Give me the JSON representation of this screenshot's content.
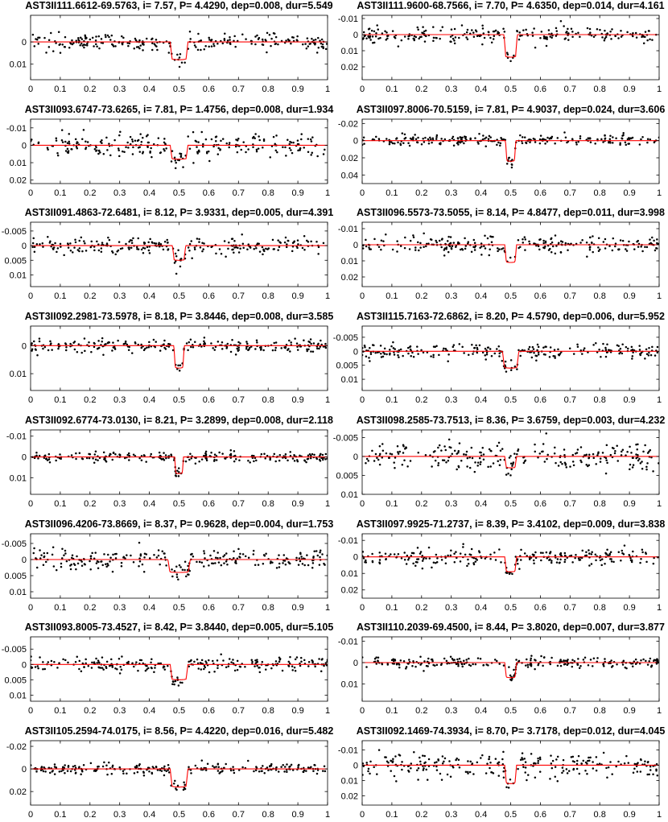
{
  "colors": {
    "data_points": "#000000",
    "model_curve": "#ff0000",
    "axes": "#000000",
    "background": "#ffffff"
  },
  "chart_data": [
    {
      "type": "scatter",
      "title": "AST3II111.6612-69.5763, i= 7.57, P= 4.4290, dep=0.008, dur=5.549",
      "xlim": [
        0,
        1
      ],
      "ylim": [
        -0.012,
        0.017
      ],
      "y_reversed": true,
      "xticks": [
        0,
        0.1,
        0.2,
        0.3,
        0.4,
        0.5,
        0.6,
        0.7,
        0.8,
        0.9,
        1
      ],
      "yticks": [
        0,
        0.01
      ],
      "ytick_labels": [
        "0",
        "0.01"
      ],
      "transit": {
        "center": 0.5,
        "depth": 0.008,
        "width": 0.06
      },
      "scatter_sigma": 0.0018,
      "series": [
        {
          "type": "scatter"
        },
        {
          "type": "line"
        }
      ]
    },
    {
      "type": "scatter",
      "title": "AST3II111.9600-68.7566, i= 7.70, P= 4.6350, dep=0.014, dur=4.161",
      "xlim": [
        0,
        1
      ],
      "ylim": [
        -0.012,
        0.028
      ],
      "y_reversed": true,
      "xticks": [
        0,
        0.1,
        0.2,
        0.3,
        0.4,
        0.5,
        0.6,
        0.7,
        0.8,
        0.9,
        1
      ],
      "yticks": [
        -0.01,
        0,
        0.01,
        0.02
      ],
      "ytick_labels": [
        "-0.01",
        "0",
        "0.01",
        "0.02"
      ],
      "transit": {
        "center": 0.5,
        "depth": 0.014,
        "width": 0.045
      },
      "scatter_sigma": 0.0025,
      "series": [
        {
          "type": "scatter"
        },
        {
          "type": "line"
        }
      ]
    },
    {
      "type": "scatter",
      "title": "AST3II093.6747-73.6265, i= 7.81, P= 1.4756, dep=0.008, dur=1.934",
      "xlim": [
        0,
        1
      ],
      "ylim": [
        -0.015,
        0.022
      ],
      "y_reversed": true,
      "xticks": [
        0,
        0.1,
        0.2,
        0.3,
        0.4,
        0.5,
        0.6,
        0.7,
        0.8,
        0.9,
        1
      ],
      "yticks": [
        -0.01,
        0,
        0.01,
        0.02
      ],
      "ytick_labels": [
        "-0.01",
        "0",
        "0.01",
        "0.02"
      ],
      "transit": {
        "center": 0.5,
        "depth": 0.008,
        "width": 0.06
      },
      "scatter_sigma": 0.0035,
      "series": [
        {
          "type": "scatter"
        },
        {
          "type": "line"
        }
      ]
    },
    {
      "type": "scatter",
      "title": "AST3II097.8006-70.5159, i= 7.81, P= 4.9037, dep=0.024, dur=3.606",
      "xlim": [
        0,
        1
      ],
      "ylim": [
        -0.025,
        0.05
      ],
      "y_reversed": true,
      "xticks": [
        0,
        0.1,
        0.2,
        0.3,
        0.4,
        0.5,
        0.6,
        0.7,
        0.8,
        0.9,
        1
      ],
      "yticks": [
        -0.02,
        0,
        0.02,
        0.04
      ],
      "ytick_labels": [
        "-0.02",
        "0",
        "0.02",
        "0.04"
      ],
      "transit": {
        "center": 0.5,
        "depth": 0.024,
        "width": 0.035
      },
      "scatter_sigma": 0.003,
      "series": [
        {
          "type": "scatter"
        },
        {
          "type": "line"
        }
      ]
    },
    {
      "type": "scatter",
      "title": "AST3II091.4863-72.6481, i= 8.12, P= 3.9331, dep=0.005, dur=4.391",
      "xlim": [
        0,
        1
      ],
      "ylim": [
        -0.008,
        0.014
      ],
      "y_reversed": true,
      "xticks": [
        0,
        0.1,
        0.2,
        0.3,
        0.4,
        0.5,
        0.6,
        0.7,
        0.8,
        0.9,
        1
      ],
      "yticks": [
        -0.005,
        0,
        0.005,
        0.01
      ],
      "ytick_labels": [
        "-0.005",
        "0",
        "0.005",
        "0.01"
      ],
      "transit": {
        "center": 0.5,
        "depth": 0.005,
        "width": 0.045
      },
      "scatter_sigma": 0.0015,
      "series": [
        {
          "type": "scatter"
        },
        {
          "type": "line"
        }
      ]
    },
    {
      "type": "scatter",
      "title": "AST3II096.5573-73.5055, i= 8.14, P= 4.8477, dep=0.011, dur=3.998",
      "xlim": [
        0,
        1
      ],
      "ylim": [
        -0.014,
        0.026
      ],
      "y_reversed": true,
      "xticks": [
        0,
        0.1,
        0.2,
        0.3,
        0.4,
        0.5,
        0.6,
        0.7,
        0.8,
        0.9,
        1
      ],
      "yticks": [
        -0.01,
        0,
        0.01,
        0.02
      ],
      "ytick_labels": [
        "-0.01",
        "0",
        "0.01",
        "0.02"
      ],
      "transit": {
        "center": 0.5,
        "depth": 0.011,
        "width": 0.04
      },
      "scatter_sigma": 0.0025,
      "series": [
        {
          "type": "scatter"
        },
        {
          "type": "line"
        }
      ]
    },
    {
      "type": "scatter",
      "title": "AST3II092.2981-73.5978, i= 8.18, P= 3.8446, dep=0.008, dur=3.585",
      "xlim": [
        0,
        1
      ],
      "ylim": [
        -0.007,
        0.016
      ],
      "y_reversed": true,
      "xticks": [
        0,
        0.1,
        0.2,
        0.3,
        0.4,
        0.5,
        0.6,
        0.7,
        0.8,
        0.9,
        1
      ],
      "yticks": [
        0,
        0.01
      ],
      "ytick_labels": [
        "0",
        "0.01"
      ],
      "transit": {
        "center": 0.5,
        "depth": 0.008,
        "width": 0.035
      },
      "scatter_sigma": 0.0012,
      "series": [
        {
          "type": "scatter"
        },
        {
          "type": "line"
        }
      ]
    },
    {
      "type": "scatter",
      "title": "AST3II115.7163-72.6862, i= 8.20, P= 4.5790, dep=0.006, dur=5.952",
      "xlim": [
        0,
        1
      ],
      "ylim": [
        -0.009,
        0.014
      ],
      "y_reversed": true,
      "xticks": [
        0,
        0.1,
        0.2,
        0.3,
        0.4,
        0.5,
        0.6,
        0.7,
        0.8,
        0.9,
        1
      ],
      "yticks": [
        -0.005,
        0,
        0.005,
        0.01
      ],
      "ytick_labels": [
        "-0.005",
        "0",
        "0.005",
        "0.01"
      ],
      "transit": {
        "center": 0.5,
        "depth": 0.006,
        "width": 0.055
      },
      "scatter_sigma": 0.0013,
      "series": [
        {
          "type": "scatter"
        },
        {
          "type": "line"
        }
      ]
    },
    {
      "type": "scatter",
      "title": "AST3II092.6774-73.0130, i= 8.21, P= 3.2899, dep=0.008, dur=2.118",
      "xlim": [
        0,
        1
      ],
      "ylim": [
        -0.013,
        0.018
      ],
      "y_reversed": true,
      "xticks": [
        0,
        0.1,
        0.2,
        0.3,
        0.4,
        0.5,
        0.6,
        0.7,
        0.8,
        0.9,
        1
      ],
      "yticks": [
        -0.01,
        0,
        0.01
      ],
      "ytick_labels": [
        "-0.01",
        "0",
        "0.01"
      ],
      "transit": {
        "center": 0.5,
        "depth": 0.008,
        "width": 0.03
      },
      "scatter_sigma": 0.0012,
      "series": [
        {
          "type": "scatter"
        },
        {
          "type": "line"
        }
      ]
    },
    {
      "type": "scatter",
      "title": "AST3II098.2585-73.7513, i= 8.36, P= 3.6759, dep=0.003, dur=4.232",
      "xlim": [
        0,
        1
      ],
      "ylim": [
        -0.007,
        0.01
      ],
      "y_reversed": true,
      "xticks": [
        0,
        0.1,
        0.2,
        0.3,
        0.4,
        0.5,
        0.6,
        0.7,
        0.8,
        0.9,
        1
      ],
      "yticks": [
        -0.005,
        0,
        0.005,
        0.01
      ],
      "ytick_labels": [
        "-0.005",
        "0",
        "0.005",
        "0.01"
      ],
      "transit": {
        "center": 0.5,
        "depth": 0.003,
        "width": 0.04
      },
      "scatter_sigma": 0.0018,
      "series": [
        {
          "type": "scatter"
        },
        {
          "type": "line"
        }
      ]
    },
    {
      "type": "scatter",
      "title": "AST3II096.4206-73.8669, i= 8.37, P= 0.9628, dep=0.004, dur=1.753",
      "xlim": [
        0,
        1
      ],
      "ylim": [
        -0.008,
        0.012
      ],
      "y_reversed": true,
      "xticks": [
        0,
        0.1,
        0.2,
        0.3,
        0.4,
        0.5,
        0.6,
        0.7,
        0.8,
        0.9,
        1
      ],
      "yticks": [
        -0.005,
        0,
        0.005,
        0.01
      ],
      "ytick_labels": [
        "-0.005",
        "0",
        "0.005",
        "0.01"
      ],
      "transit": {
        "center": 0.5,
        "depth": 0.004,
        "width": 0.075
      },
      "scatter_sigma": 0.0014,
      "series": [
        {
          "type": "scatter"
        },
        {
          "type": "line"
        }
      ]
    },
    {
      "type": "scatter",
      "title": "AST3II097.9925-71.2737, i= 8.39, P= 3.4102, dep=0.009, dur=3.838",
      "xlim": [
        0,
        1
      ],
      "ylim": [
        -0.014,
        0.025
      ],
      "y_reversed": true,
      "xticks": [
        0,
        0.1,
        0.2,
        0.3,
        0.4,
        0.5,
        0.6,
        0.7,
        0.8,
        0.9,
        1
      ],
      "yticks": [
        -0.01,
        0,
        0.01,
        0.02
      ],
      "ytick_labels": [
        "-0.01",
        "0",
        "0.01",
        "0.02"
      ],
      "transit": {
        "center": 0.5,
        "depth": 0.009,
        "width": 0.04
      },
      "scatter_sigma": 0.0025,
      "series": [
        {
          "type": "scatter"
        },
        {
          "type": "line"
        }
      ]
    },
    {
      "type": "scatter",
      "title": "AST3II093.8005-73.4527, i= 8.42, P= 3.8440, dep=0.005, dur=5.105",
      "xlim": [
        0,
        1
      ],
      "ylim": [
        -0.009,
        0.012
      ],
      "y_reversed": true,
      "xticks": [
        0,
        0.1,
        0.2,
        0.3,
        0.4,
        0.5,
        0.6,
        0.7,
        0.8,
        0.9,
        1
      ],
      "yticks": [
        -0.005,
        0,
        0.005,
        0.01
      ],
      "ytick_labels": [
        "-0.005",
        "0",
        "0.005",
        "0.01"
      ],
      "transit": {
        "center": 0.5,
        "depth": 0.005,
        "width": 0.06
      },
      "scatter_sigma": 0.0012,
      "series": [
        {
          "type": "scatter"
        },
        {
          "type": "line"
        }
      ]
    },
    {
      "type": "scatter",
      "title": "AST3II110.2039-69.4500, i= 8.44, P= 3.8020, dep=0.007, dur=3.877",
      "xlim": [
        0,
        1
      ],
      "ylim": [
        -0.012,
        0.018
      ],
      "y_reversed": true,
      "xticks": [
        0,
        0.1,
        0.2,
        0.3,
        0.4,
        0.5,
        0.6,
        0.7,
        0.8,
        0.9,
        1
      ],
      "yticks": [
        -0.01,
        0,
        0.01
      ],
      "ytick_labels": [
        "-0.01",
        "0",
        "0.01"
      ],
      "transit": {
        "center": 0.5,
        "depth": 0.007,
        "width": 0.04
      },
      "scatter_sigma": 0.0013,
      "series": [
        {
          "type": "scatter"
        },
        {
          "type": "line"
        }
      ]
    },
    {
      "type": "scatter",
      "title": "AST3II105.2594-74.0175, i= 8.56, P= 4.4220, dep=0.016, dur=5.482",
      "xlim": [
        0,
        1
      ],
      "ylim": [
        -0.025,
        0.032
      ],
      "y_reversed": true,
      "xticks": [
        0,
        0.1,
        0.2,
        0.3,
        0.4,
        0.5,
        0.6,
        0.7,
        0.8,
        0.9,
        1
      ],
      "yticks": [
        -0.02,
        0,
        0.02
      ],
      "ytick_labels": [
        "-0.02",
        "0",
        "0.02"
      ],
      "transit": {
        "center": 0.5,
        "depth": 0.016,
        "width": 0.06
      },
      "scatter_sigma": 0.0025,
      "series": [
        {
          "type": "scatter"
        },
        {
          "type": "line"
        }
      ]
    },
    {
      "type": "scatter",
      "title": "AST3II092.1469-74.3934, i= 8.70, P= 3.7178, dep=0.012, dur=4.045",
      "xlim": [
        0,
        1
      ],
      "ylim": [
        -0.016,
        0.026
      ],
      "y_reversed": true,
      "xticks": [
        0,
        0.1,
        0.2,
        0.3,
        0.4,
        0.5,
        0.6,
        0.7,
        0.8,
        0.9,
        1
      ],
      "yticks": [
        -0.01,
        0,
        0.01,
        0.02
      ],
      "ytick_labels": [
        "-0.01",
        "0",
        "0.01",
        "0.02"
      ],
      "transit": {
        "center": 0.5,
        "depth": 0.012,
        "width": 0.04
      },
      "scatter_sigma": 0.004,
      "series": [
        {
          "type": "scatter"
        },
        {
          "type": "line"
        }
      ]
    }
  ]
}
